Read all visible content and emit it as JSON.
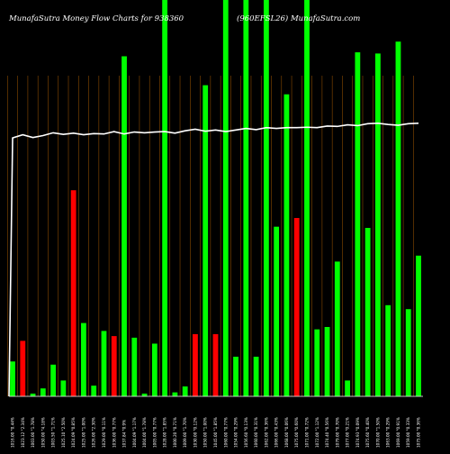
{
  "page": {
    "title_left": "MunafaSutra  Money Flow  Charts for 938360",
    "title_right": "(960EFSL26) MunafaSutra.com"
  },
  "colors": {
    "background": "#000000",
    "gridline": "#8a4a00",
    "up_bar": "#00ff00",
    "down_bar": "#ff0000",
    "price_line": "#ffffff",
    "text": "#ffffff"
  },
  "chart_data": {
    "type": "bar",
    "title": "MunafaSutra  Money Flow  Charts for 938360",
    "subtitle": "(960EFSL26) MunafaSutra.com",
    "xlabel": "",
    "ylabel": "",
    "ylim": [
      0,
      100
    ],
    "grid": true,
    "categories": [
      "1016.00 \"0.44%",
      "1023.12 \"2.34%",
      "1003.00 \"1.78%",
      "1050.00 \"4.18%",
      "1003.50 \"1.71%",
      "1025.10 \"2.50%",
      "1024.09 \"0.85%",
      "1025.00 \"1.00%",
      "1026.00 \"2.30%",
      "1029.00 \"0.11%",
      "1036.00 \"0.77%",
      "1037.84 \"0.9%",
      "1004.09 \"1.17%",
      "1004.00 \"1.78%",
      "1005.00 \"0.77%",
      "1028.00 \"1.85%",
      "1000.20 \"0.71%",
      "1009.00 \"1.70%",
      "1030.00 \"0.12%",
      "1050.00 \"1.00%",
      "1045.00 \"1.85%",
      "1060.00 \"0.77%",
      "1054.00 \"0.29%",
      "1056.60 \"0.13%",
      "1060.00 \"0.31%",
      "1062.00 \"0.36%",
      "1066.00 \"0.43%",
      "1068.00 \"0.06%",
      "1075.00 \"0.60%",
      "1071.00 \"0.72%",
      "1072.00 \"1.12%",
      "1074.40 \"0.56%",
      "1079.00 \"0.70%",
      "1077.00 \"0.21%",
      "1074.93 \"0.09%",
      "1075.60 \"0.40%",
      "1070.00 \"1.50%",
      "1063.00 \"0.29%",
      "1069.00 \"0.91%",
      "1059.00 \"0.33%",
      "1075.00 \"0.36%"
    ],
    "series": [
      {
        "values": [
          8.8,
          14.0,
          0.7,
          2.0,
          8.0,
          4.0,
          52.0,
          18.5,
          2.7,
          16.5,
          15.2,
          85.8,
          14.8,
          0.7,
          13.3,
          102,
          1.0,
          2.5,
          15.7,
          78.5,
          15.7,
          102,
          10.0,
          102,
          10.0,
          102,
          42.8,
          76.2,
          45.0,
          102,
          16.9,
          17.5,
          34.0,
          4.0,
          86.8,
          42.5,
          86.5,
          23.0,
          89.5,
          22.0,
          35.5
        ],
        "directions": [
          "up",
          "down",
          "up",
          "up",
          "up",
          "up",
          "down",
          "up",
          "up",
          "up",
          "down",
          "up",
          "up",
          "up",
          "up",
          "up",
          "up",
          "up",
          "down",
          "up",
          "down",
          "up",
          "up",
          "up",
          "up",
          "up",
          "up",
          "up",
          "down",
          "up",
          "up",
          "up",
          "up",
          "up",
          "up",
          "up",
          "up",
          "up",
          "up",
          "up",
          "up"
        ]
      }
    ],
    "price_line": [
      65.2,
      66.0,
      65.3,
      65.8,
      66.5,
      66.1,
      66.4,
      66.0,
      66.3,
      66.2,
      66.8,
      66.2,
      66.7,
      66.5,
      66.7,
      66.8,
      66.4,
      67.0,
      67.4,
      66.9,
      67.2,
      66.8,
      67.2,
      67.6,
      67.3,
      67.8,
      67.6,
      67.8,
      67.8,
      67.9,
      67.8,
      68.2,
      68.1,
      68.5,
      68.3,
      68.8,
      68.9,
      68.6,
      68.4,
      68.8,
      68.9
    ]
  }
}
